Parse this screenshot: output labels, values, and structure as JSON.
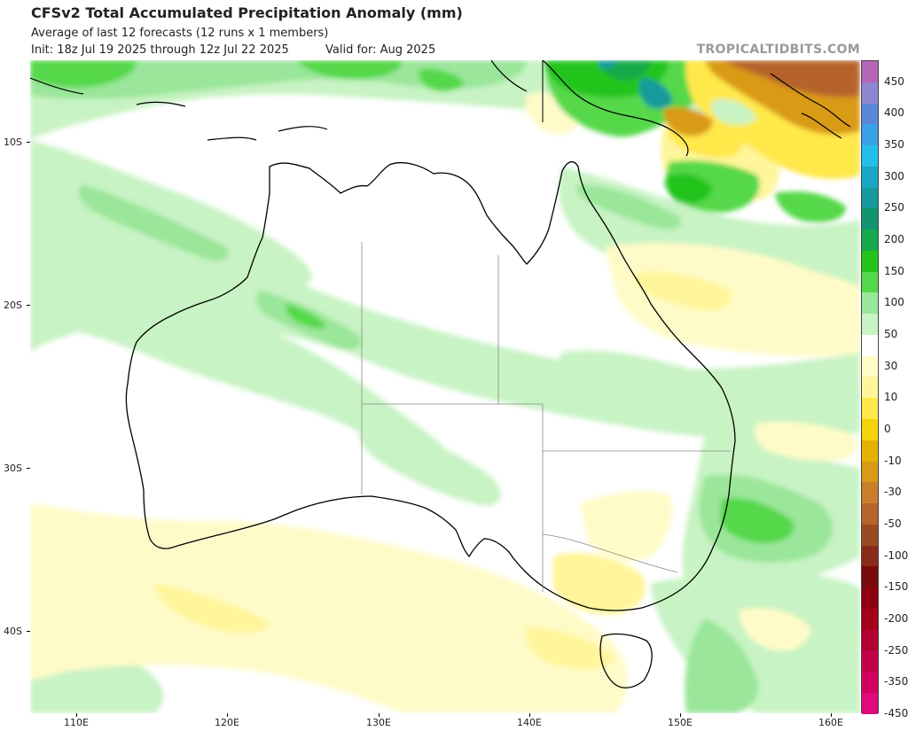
{
  "header": {
    "title": "CFSv2 Total Accumulated Precipitation Anomaly (mm)",
    "subtitle": "Average of last 12 forecasts (12 runs x 1 members)",
    "init": "Init: 18z Jul 19 2025 through 12z Jul 22 2025",
    "valid": "Valid for: Aug 2025",
    "brand": "TROPICALTIDBITS.COM"
  },
  "axes": {
    "lat_labels": [
      "10S",
      "20S",
      "30S",
      "40S"
    ],
    "lon_labels": [
      "110E",
      "120E",
      "130E",
      "140E",
      "150E",
      "160E"
    ]
  },
  "colorbar": {
    "labels": [
      "450",
      "400",
      "350",
      "300",
      "250",
      "200",
      "150",
      "100",
      "50",
      "30",
      "10",
      "0",
      "-10",
      "-30",
      "-50",
      "-100",
      "-150",
      "-200",
      "-250",
      "-350",
      "-450"
    ],
    "colors": [
      "#b565b8",
      "#8e86cf",
      "#5a88d8",
      "#3aa0e8",
      "#23bfe9",
      "#1aa6c4",
      "#159a9c",
      "#129470",
      "#14a94a",
      "#22c41a",
      "#55d84a",
      "#9ae69a",
      "#c8f3c4",
      "#ffffff",
      "#fffbc8",
      "#fff59a",
      "#ffe84a",
      "#f6d30a",
      "#e6b200",
      "#d99a16",
      "#c97e2c",
      "#b5642c",
      "#9a4a22",
      "#8a2a1a",
      "#7a0a0a",
      "#8e0010",
      "#a3001c",
      "#b20030",
      "#c3004a",
      "#d20060",
      "#e00a7a"
    ]
  }
}
